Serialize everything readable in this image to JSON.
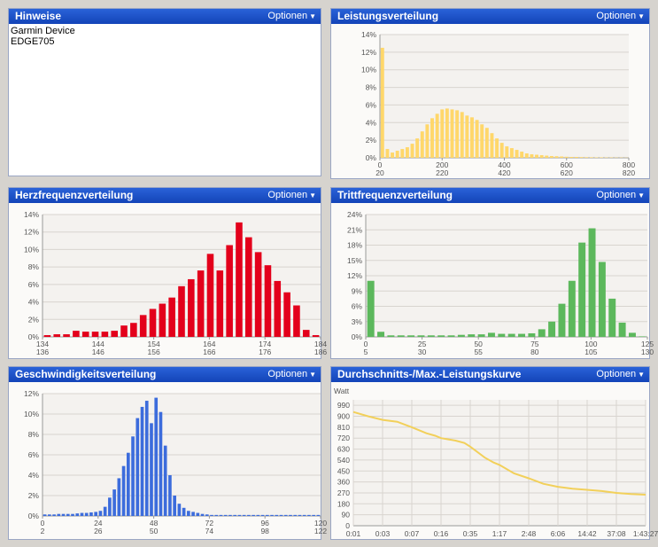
{
  "options_label": "Optionen",
  "notes": {
    "title": "Hinweise",
    "lines": [
      "Garmin Device",
      "EDGE705"
    ]
  },
  "chart_data": [
    {
      "id": "power",
      "type": "bar",
      "title": "Leistungsverteilung",
      "color": "#ffd76a",
      "yticks": [
        "0%",
        "2%",
        "4%",
        "6%",
        "8%",
        "10%",
        "12%",
        "14%"
      ],
      "ymax": 14,
      "xticks_top": [
        "0",
        "200",
        "400",
        "600",
        "800"
      ],
      "xticks_bottom": [
        "20",
        "220",
        "420",
        "620",
        "820"
      ],
      "values": [
        12.5,
        1.0,
        0.6,
        0.8,
        1.0,
        1.2,
        1.6,
        2.2,
        3.0,
        3.8,
        4.5,
        5.0,
        5.5,
        5.6,
        5.5,
        5.4,
        5.2,
        4.8,
        4.6,
        4.3,
        3.8,
        3.4,
        2.8,
        2.2,
        1.7,
        1.3,
        1.1,
        0.9,
        0.7,
        0.5,
        0.4,
        0.35,
        0.3,
        0.25,
        0.2,
        0.18,
        0.15,
        0.12,
        0.1,
        0.1,
        0.08,
        0.07,
        0.06,
        0.05,
        0.05,
        0.04,
        0.04,
        0.03,
        0.03,
        0.02
      ]
    },
    {
      "id": "heartrate",
      "type": "bar",
      "title": "Herzfrequenzverteilung",
      "color": "#e3001b",
      "yticks": [
        "0%",
        "2%",
        "4%",
        "6%",
        "8%",
        "10%",
        "12%",
        "14%"
      ],
      "ymax": 14,
      "xticks_top": [
        "134",
        "144",
        "154",
        "164",
        "174",
        "184"
      ],
      "xticks_bottom": [
        "136",
        "146",
        "156",
        "166",
        "176",
        "186"
      ],
      "values": [
        0.2,
        0.3,
        0.3,
        0.7,
        0.6,
        0.6,
        0.6,
        0.7,
        1.3,
        1.6,
        2.5,
        3.2,
        3.8,
        4.5,
        5.8,
        6.6,
        7.6,
        9.5,
        7.6,
        10.5,
        13.1,
        11.4,
        9.7,
        8.2,
        6.4,
        5.1,
        3.6,
        0.8,
        0.2
      ]
    },
    {
      "id": "cadence",
      "type": "bar",
      "title": "Trittfrequenzverteilung",
      "color": "#5cb85c",
      "yticks": [
        "0%",
        "3%",
        "6%",
        "9%",
        "12%",
        "15%",
        "18%",
        "21%",
        "24%"
      ],
      "ymax": 24,
      "xticks_top": [
        "0",
        "25",
        "50",
        "75",
        "100",
        "125"
      ],
      "xticks_bottom": [
        "5",
        "30",
        "55",
        "80",
        "105",
        "130"
      ],
      "values": [
        11.0,
        1.0,
        0.3,
        0.3,
        0.3,
        0.3,
        0.3,
        0.3,
        0.3,
        0.4,
        0.5,
        0.5,
        0.8,
        0.6,
        0.6,
        0.6,
        0.7,
        1.5,
        3.0,
        6.5,
        11.0,
        18.5,
        21.3,
        14.7,
        7.5,
        2.8,
        0.8,
        0.1
      ]
    },
    {
      "id": "speed",
      "type": "bar",
      "title": "Geschwindigkeitsverteilung",
      "color": "#3c6cdc",
      "yticks": [
        "0%",
        "2%",
        "4%",
        "6%",
        "8%",
        "10%",
        "12%"
      ],
      "ymax": 12,
      "xticks_top": [
        "0",
        "24",
        "48",
        "72",
        "96",
        "120"
      ],
      "xticks_bottom": [
        "2",
        "26",
        "50",
        "74",
        "98",
        "122"
      ],
      "values": [
        0.15,
        0.15,
        0.15,
        0.2,
        0.2,
        0.2,
        0.2,
        0.25,
        0.3,
        0.3,
        0.35,
        0.4,
        0.5,
        0.9,
        1.8,
        2.6,
        3.7,
        4.9,
        6.2,
        7.8,
        9.6,
        10.7,
        11.3,
        9.1,
        11.6,
        10.2,
        6.9,
        4.0,
        2.0,
        1.2,
        0.8,
        0.5,
        0.4,
        0.3,
        0.2,
        0.15,
        0.1,
        0.1,
        0.1,
        0.1,
        0.1,
        0.1,
        0.1,
        0.1,
        0.1,
        0.1,
        0.1,
        0.1,
        0.1,
        0.1,
        0.1,
        0.1,
        0.1,
        0.1,
        0.1,
        0.1,
        0.1,
        0.1,
        0.1,
        0.1
      ]
    },
    {
      "id": "meanmax",
      "type": "line",
      "title": "Durchschnitts-/Max.-Leistungskurve",
      "color": "#f2d05a",
      "ylabel": "Watt",
      "yticks": [
        "0",
        "90",
        "180",
        "270",
        "360",
        "450",
        "540",
        "630",
        "720",
        "810",
        "900",
        "990"
      ],
      "ymax": 1035,
      "xticks": [
        "0:01",
        "0:03",
        "0:07",
        "0:16",
        "0:35",
        "1:17",
        "2:48",
        "6:06",
        "14:42",
        "37:08",
        "1:43:27"
      ],
      "x": [
        0,
        0.05,
        0.1,
        0.15,
        0.2,
        0.25,
        0.28,
        0.3,
        0.35,
        0.38,
        0.4,
        0.45,
        0.48,
        0.5,
        0.55,
        0.6,
        0.65,
        0.7,
        0.75,
        0.8,
        0.85,
        0.9,
        0.95,
        1.0
      ],
      "values": [
        935,
        900,
        870,
        855,
        810,
        760,
        740,
        720,
        700,
        680,
        650,
        560,
        520,
        500,
        430,
        390,
        345,
        320,
        305,
        295,
        285,
        270,
        260,
        255
      ]
    }
  ]
}
